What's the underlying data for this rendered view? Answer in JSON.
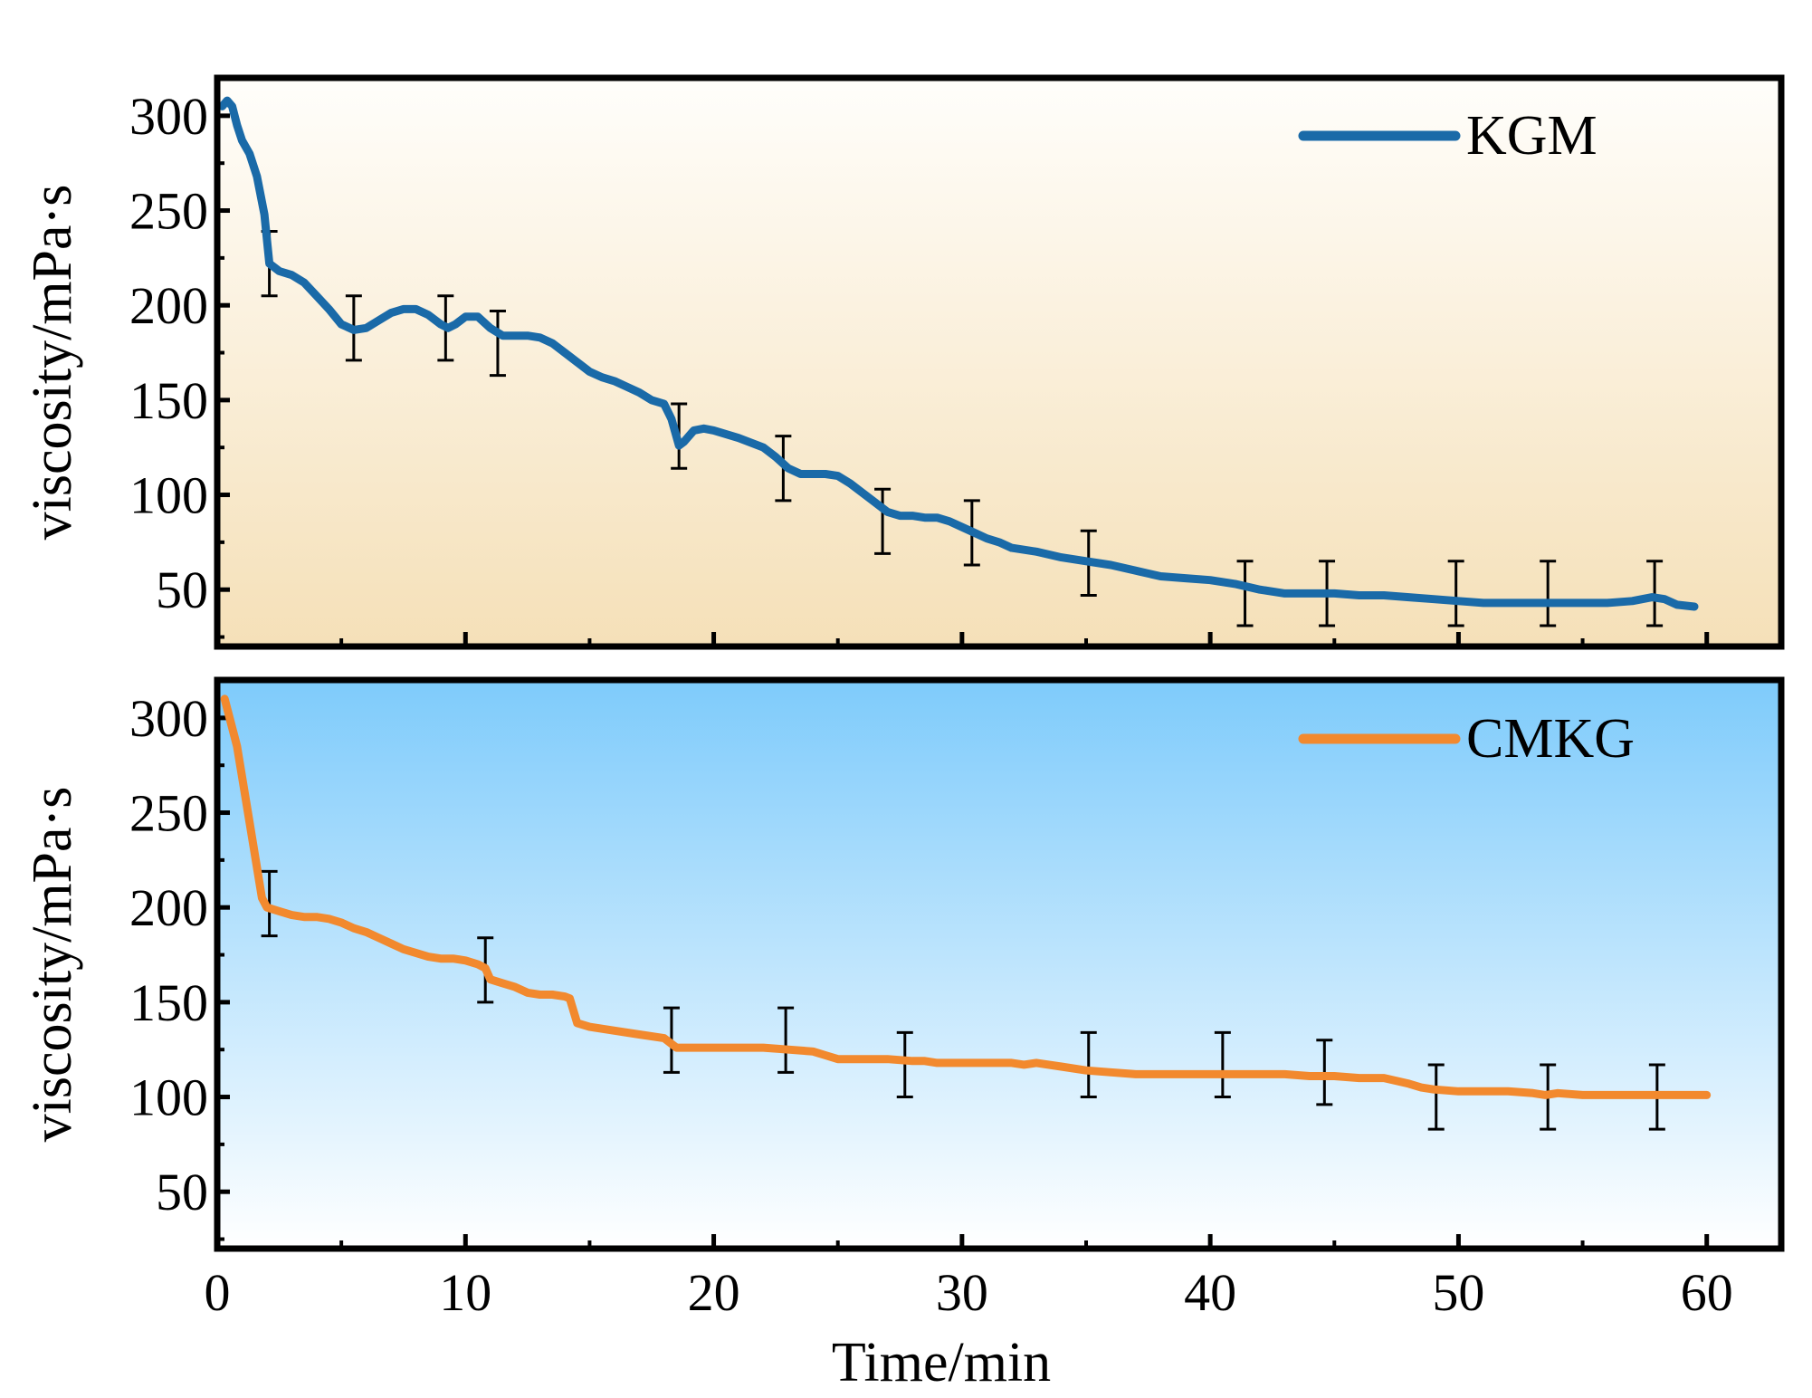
{
  "colors": {
    "kgm": "#1a6aa8",
    "cmkg": "#f2892e",
    "top_bg_top": "#fffefb",
    "top_bg_bottom": "#f5e0b8",
    "bottom_bg_top": "#7ecbfb",
    "bottom_bg_bottom": "#ffffff",
    "axis": "#000000"
  },
  "chart_data": [
    {
      "type": "line",
      "ylabel": "viscosity/mPa·s",
      "xlabel": "",
      "xlim": [
        0,
        63
      ],
      "ylim": [
        20,
        320
      ],
      "yticks": [
        50,
        100,
        150,
        200,
        250,
        300
      ],
      "xticks": [
        0,
        10,
        20,
        30,
        40,
        50,
        60
      ],
      "show_x_tick_labels": false,
      "grid": false,
      "legend": {
        "position": "top-right"
      },
      "series": [
        {
          "name": "KGM",
          "x": [
            0.2,
            0.4,
            0.6,
            0.8,
            1.0,
            1.3,
            1.6,
            1.9,
            2.1,
            2.5,
            3.0,
            3.5,
            4.0,
            4.5,
            5.0,
            5.5,
            6.0,
            6.5,
            7.0,
            7.5,
            8.0,
            8.5,
            9.0,
            9.3,
            9.6,
            10.0,
            10.5,
            11.0,
            11.5,
            12.0,
            12.5,
            13.0,
            13.5,
            14.0,
            14.5,
            15.0,
            15.5,
            16.0,
            16.5,
            17.0,
            17.5,
            18.0,
            18.3,
            18.6,
            18.8,
            19.2,
            19.6,
            20.0,
            21.0,
            22.0,
            22.5,
            23.0,
            23.5,
            24.0,
            24.5,
            25.0,
            25.5,
            26.0,
            26.5,
            27.0,
            27.5,
            28.0,
            28.5,
            29.0,
            29.5,
            30.0,
            30.5,
            31.0,
            31.5,
            32.0,
            33.0,
            34.0,
            35.0,
            36.0,
            37.0,
            38.0,
            39.0,
            40.0,
            41.0,
            42.0,
            43.0,
            44.0,
            45.0,
            46.0,
            47.0,
            48.0,
            49.0,
            50.0,
            51.0,
            52.0,
            53.0,
            54.0,
            55.0,
            56.0,
            57.0,
            57.8,
            58.3,
            58.8,
            59.5
          ],
          "y": [
            305,
            308,
            305,
            295,
            287,
            280,
            268,
            248,
            222,
            218,
            216,
            212,
            205,
            198,
            190,
            187,
            188,
            192,
            196,
            198,
            198,
            195,
            190,
            188,
            190,
            194,
            194,
            188,
            184,
            184,
            184,
            183,
            180,
            175,
            170,
            165,
            162,
            160,
            157,
            154,
            150,
            148,
            140,
            126,
            128,
            134,
            135,
            134,
            130,
            125,
            120,
            114,
            111,
            111,
            111,
            110,
            106,
            101,
            96,
            91,
            89,
            89,
            88,
            88,
            86,
            83,
            80,
            77,
            75,
            72,
            70,
            67,
            65,
            63,
            60,
            57,
            56,
            55,
            53,
            50,
            48,
            48,
            48,
            47,
            47,
            46,
            45,
            44,
            43,
            43,
            43,
            43,
            43,
            43,
            44,
            46,
            45,
            42,
            41
          ],
          "error_bars": {
            "x": [
              2.1,
              5.5,
              9.2,
              11.3,
              18.6,
              22.8,
              26.8,
              30.4,
              35.1,
              41.4,
              44.7,
              49.9,
              53.6,
              57.9
            ],
            "y": [
              222,
              188,
              188,
              180,
              131,
              114,
              86,
              80,
              64,
              48,
              48,
              48,
              48,
              48
            ],
            "err": [
              17,
              17,
              17,
              17,
              17,
              17,
              17,
              17,
              17,
              17,
              17,
              17,
              17,
              17
            ]
          }
        }
      ]
    },
    {
      "type": "line",
      "ylabel": "viscosity/mPa·s",
      "xlabel": "Time/min",
      "xlim": [
        0,
        63
      ],
      "ylim": [
        20,
        320
      ],
      "yticks": [
        50,
        100,
        150,
        200,
        250,
        300
      ],
      "xticks": [
        0,
        10,
        20,
        30,
        40,
        50,
        60
      ],
      "xticklabels": [
        "0",
        "10",
        "20",
        "30",
        "40",
        "50",
        "60"
      ],
      "show_x_tick_labels": true,
      "grid": false,
      "legend": {
        "position": "top-right"
      },
      "series": [
        {
          "name": "CMKG",
          "x": [
            0.3,
            0.8,
            1.3,
            1.8,
            2.0,
            2.5,
            3.0,
            3.5,
            4.0,
            4.5,
            5.0,
            5.5,
            6.0,
            6.5,
            7.0,
            7.5,
            8.0,
            8.5,
            9.0,
            9.5,
            10.0,
            10.5,
            10.8,
            11.0,
            11.5,
            12.0,
            12.5,
            13.0,
            13.5,
            14.0,
            14.2,
            14.5,
            15.0,
            16.0,
            17.0,
            18.0,
            18.5,
            19.0,
            20.0,
            21.0,
            22.0,
            23.0,
            24.0,
            24.5,
            25.0,
            26.0,
            27.0,
            28.0,
            28.5,
            29.0,
            30.0,
            31.0,
            32.0,
            32.5,
            33.0,
            34.0,
            35.0,
            36.0,
            37.0,
            38.0,
            39.0,
            40.0,
            41.0,
            42.0,
            43.0,
            44.0,
            45.0,
            46.0,
            47.0,
            48.0,
            48.5,
            49.0,
            50.0,
            51.0,
            52.0,
            53.0,
            53.5,
            54.0,
            55.0,
            56.0,
            57.0,
            58.0,
            59.0,
            60.0
          ],
          "y": [
            310,
            285,
            245,
            205,
            200,
            198,
            196,
            195,
            195,
            194,
            192,
            189,
            187,
            184,
            181,
            178,
            176,
            174,
            173,
            173,
            172,
            170,
            168,
            162,
            160,
            158,
            155,
            154,
            154,
            153,
            152,
            139,
            137,
            135,
            133,
            131,
            126,
            126,
            126,
            126,
            126,
            125,
            124,
            122,
            120,
            120,
            120,
            119,
            119,
            118,
            118,
            118,
            118,
            117,
            118,
            116,
            114,
            113,
            112,
            112,
            112,
            112,
            112,
            112,
            112,
            111,
            111,
            110,
            110,
            107,
            105,
            104,
            103,
            103,
            103,
            102,
            101,
            102,
            101,
            101,
            101,
            101,
            101,
            101
          ],
          "error_bars": {
            "x": [
              2.1,
              10.8,
              18.3,
              22.9,
              27.7,
              35.1,
              40.5,
              44.6,
              49.1,
              53.6,
              58.0
            ],
            "y": [
              202,
              167,
              130,
              130,
              117,
              117,
              117,
              113,
              100,
              100,
              100
            ],
            "err": [
              17,
              17,
              17,
              17,
              17,
              17,
              17,
              17,
              17,
              17,
              17
            ]
          }
        }
      ]
    }
  ]
}
